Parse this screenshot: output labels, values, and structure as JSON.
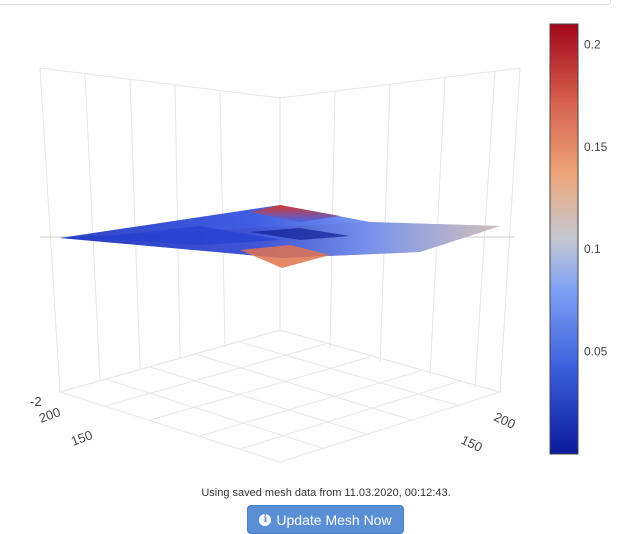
{
  "colorbar": {
    "ticks": [
      "0.2",
      "0.15",
      "0.1",
      "0.05"
    ],
    "range": [
      0,
      0.21
    ],
    "tick_values": [
      0.2,
      0.15,
      0.1,
      0.05
    ],
    "colors": [
      "#0a1a9a",
      "#3b5fdc",
      "#7ea0f5",
      "#c4c8d2",
      "#eea67a",
      "#d6604d",
      "#a3061c"
    ]
  },
  "axes": {
    "z_tick": "-2",
    "left_ticks": [
      "200",
      "150"
    ],
    "right_ticks": [
      "200",
      "150"
    ]
  },
  "status": {
    "text": "Using saved mesh data from 11.03.2020, 00:12:43."
  },
  "button": {
    "label": "Update Mesh Now",
    "icon": "info-circle-icon"
  }
}
